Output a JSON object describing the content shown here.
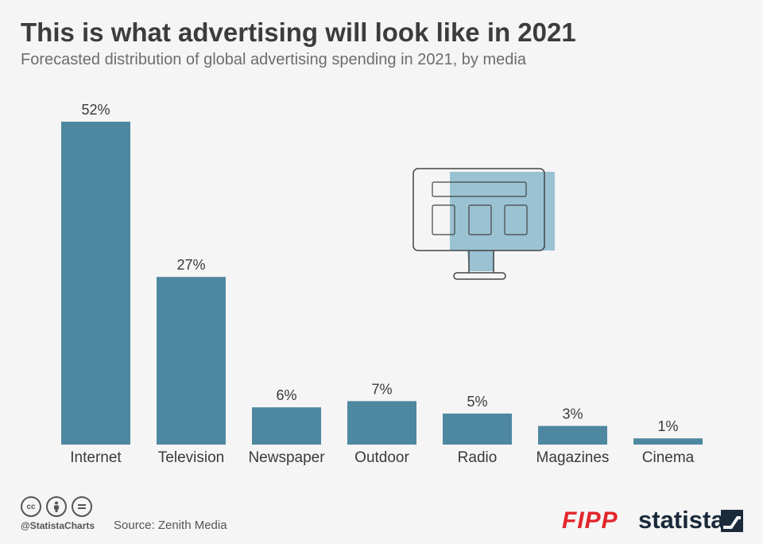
{
  "header": {
    "title": "This is what advertising will look like in 2021",
    "subtitle": "Forecasted distribution of global advertising spending in 2021, by media"
  },
  "chart_data": {
    "type": "bar",
    "title": "This is what advertising will look like in 2021",
    "subtitle": "Forecasted distribution of global advertising spending in 2021, by media",
    "categories": [
      "Internet",
      "Television",
      "Newspaper",
      "Outdoor",
      "Radio",
      "Magazines",
      "Cinema"
    ],
    "values": [
      52,
      27,
      6,
      7,
      5,
      3,
      1
    ],
    "value_suffix": "%",
    "xlabel": "",
    "ylabel": "",
    "ylim": [
      0,
      52
    ],
    "grid": false,
    "bar_color": "#4e88a0"
  },
  "footer": {
    "handle": "@StatistaCharts",
    "source": "Source: Zenith Media",
    "cc_icons": [
      "cc-icon",
      "by-icon",
      "nd-icon"
    ],
    "logos": {
      "fipp": "FIPP",
      "statista": "statista"
    }
  },
  "colors": {
    "background": "#f5f5f5",
    "bar": "#4e88a0",
    "illustration_fill": "#8ab8cc",
    "fipp_red": "#e3262b"
  }
}
